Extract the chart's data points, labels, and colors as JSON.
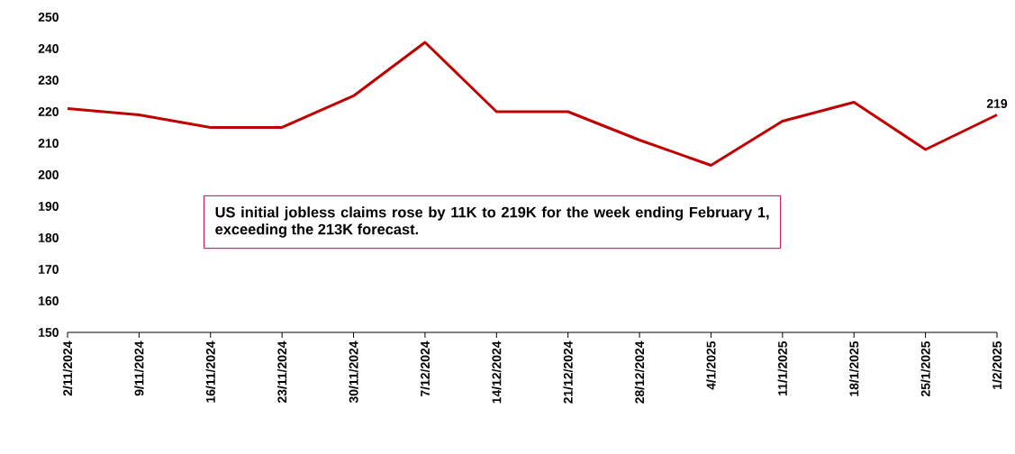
{
  "chart_data": {
    "type": "line",
    "categories": [
      "2/11/2024",
      "9/11/2024",
      "16/11/2024",
      "23/11/2024",
      "30/11/2024",
      "7/12/2024",
      "14/12/2024",
      "21/12/2024",
      "28/12/2024",
      "4/1/2025",
      "11/1/2025",
      "18/1/2025",
      "25/1/2025",
      "1/2/2025"
    ],
    "series": [
      {
        "color": "#c00000",
        "values": [
          221,
          219,
          215,
          215,
          225,
          242,
          220,
          220,
          211,
          203,
          217,
          223,
          208,
          219
        ],
        "value_labels": [
          null,
          null,
          null,
          null,
          null,
          null,
          null,
          null,
          null,
          null,
          null,
          null,
          null,
          "219"
        ]
      }
    ],
    "ylim": [
      150,
      250
    ],
    "yticks": [
      150,
      160,
      170,
      180,
      190,
      200,
      210,
      220,
      230,
      240,
      250
    ],
    "grid": false,
    "marker": "none",
    "line_style": "solid",
    "annotations": [
      "US initial jobless claims rose by 11K to 219K for the week ending February 1, exceeding the 213K forecast."
    ]
  }
}
